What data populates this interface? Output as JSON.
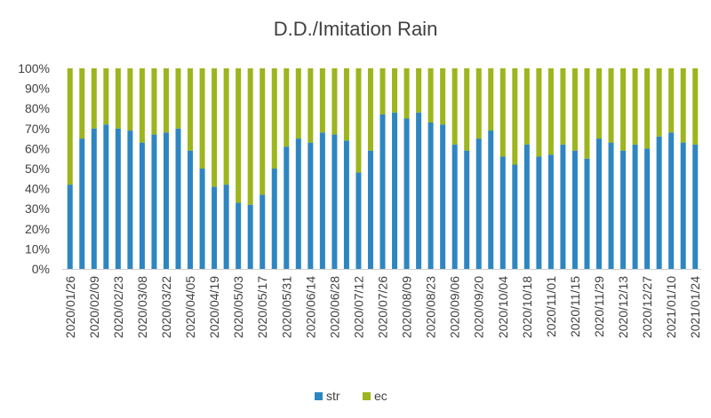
{
  "chart_data": {
    "type": "bar",
    "stacked": true,
    "percent": true,
    "title": "D.D./Imitation Rain",
    "xlabel": "",
    "ylabel": "",
    "ylim": [
      0,
      100
    ],
    "y_ticks": [
      "0%",
      "10%",
      "20%",
      "30%",
      "40%",
      "50%",
      "60%",
      "70%",
      "80%",
      "90%",
      "100%"
    ],
    "grid": false,
    "legend_position": "bottom-center",
    "categories": [
      "2020/01/26",
      "2020/02/02",
      "2020/02/09",
      "2020/02/16",
      "2020/02/23",
      "2020/03/01",
      "2020/03/08",
      "2020/03/15",
      "2020/03/22",
      "2020/03/29",
      "2020/04/05",
      "2020/04/12",
      "2020/04/19",
      "2020/04/26",
      "2020/05/03",
      "2020/05/10",
      "2020/05/17",
      "2020/05/24",
      "2020/05/31",
      "2020/06/07",
      "2020/06/14",
      "2020/06/21",
      "2020/06/28",
      "2020/07/05",
      "2020/07/12",
      "2020/07/19",
      "2020/07/26",
      "2020/08/02",
      "2020/08/09",
      "2020/08/16",
      "2020/08/23",
      "2020/08/30",
      "2020/09/06",
      "2020/09/13",
      "2020/09/20",
      "2020/09/27",
      "2020/10/04",
      "2020/10/11",
      "2020/10/18",
      "2020/10/25",
      "2020/11/01",
      "2020/11/08",
      "2020/11/15",
      "2020/11/22",
      "2020/11/29",
      "2020/12/06",
      "2020/12/13",
      "2020/12/20",
      "2020/12/27",
      "2021/01/03",
      "2021/01/10",
      "2021/01/17",
      "2021/01/24"
    ],
    "tick_labels": [
      "2020/01/26",
      "2020/02/09",
      "2020/02/23",
      "2020/03/08",
      "2020/03/22",
      "2020/04/05",
      "2020/04/19",
      "2020/05/03",
      "2020/05/17",
      "2020/05/31",
      "2020/06/14",
      "2020/06/28",
      "2020/07/12",
      "2020/07/26",
      "2020/08/09",
      "2020/08/23",
      "2020/09/06",
      "2020/09/20",
      "2020/10/04",
      "2020/10/18",
      "2020/11/01",
      "2020/11/15",
      "2020/11/29",
      "2020/12/13",
      "2020/12/27",
      "2021/01/10",
      "2021/01/24"
    ],
    "series": [
      {
        "name": "str",
        "color": "#2E86C1",
        "values": [
          42,
          65,
          70,
          72,
          70,
          69,
          63,
          67,
          68,
          70,
          59,
          50,
          41,
          42,
          33,
          32,
          37,
          50,
          61,
          65,
          63,
          68,
          67,
          64,
          48,
          59,
          77,
          78,
          75,
          78,
          73,
          72,
          62,
          59,
          65,
          69,
          56,
          52,
          62,
          56,
          57,
          62,
          59,
          55,
          65,
          63,
          59,
          62,
          60,
          66,
          68,
          63,
          62
        ]
      },
      {
        "name": "ec",
        "color": "#9DB51E",
        "values": [
          58,
          35,
          30,
          28,
          30,
          31,
          37,
          33,
          32,
          30,
          41,
          50,
          59,
          58,
          67,
          68,
          63,
          50,
          39,
          35,
          37,
          32,
          33,
          36,
          52,
          41,
          23,
          22,
          25,
          22,
          27,
          28,
          38,
          41,
          35,
          31,
          44,
          48,
          38,
          44,
          43,
          38,
          41,
          45,
          35,
          37,
          41,
          38,
          40,
          34,
          32,
          37,
          38
        ]
      }
    ]
  }
}
